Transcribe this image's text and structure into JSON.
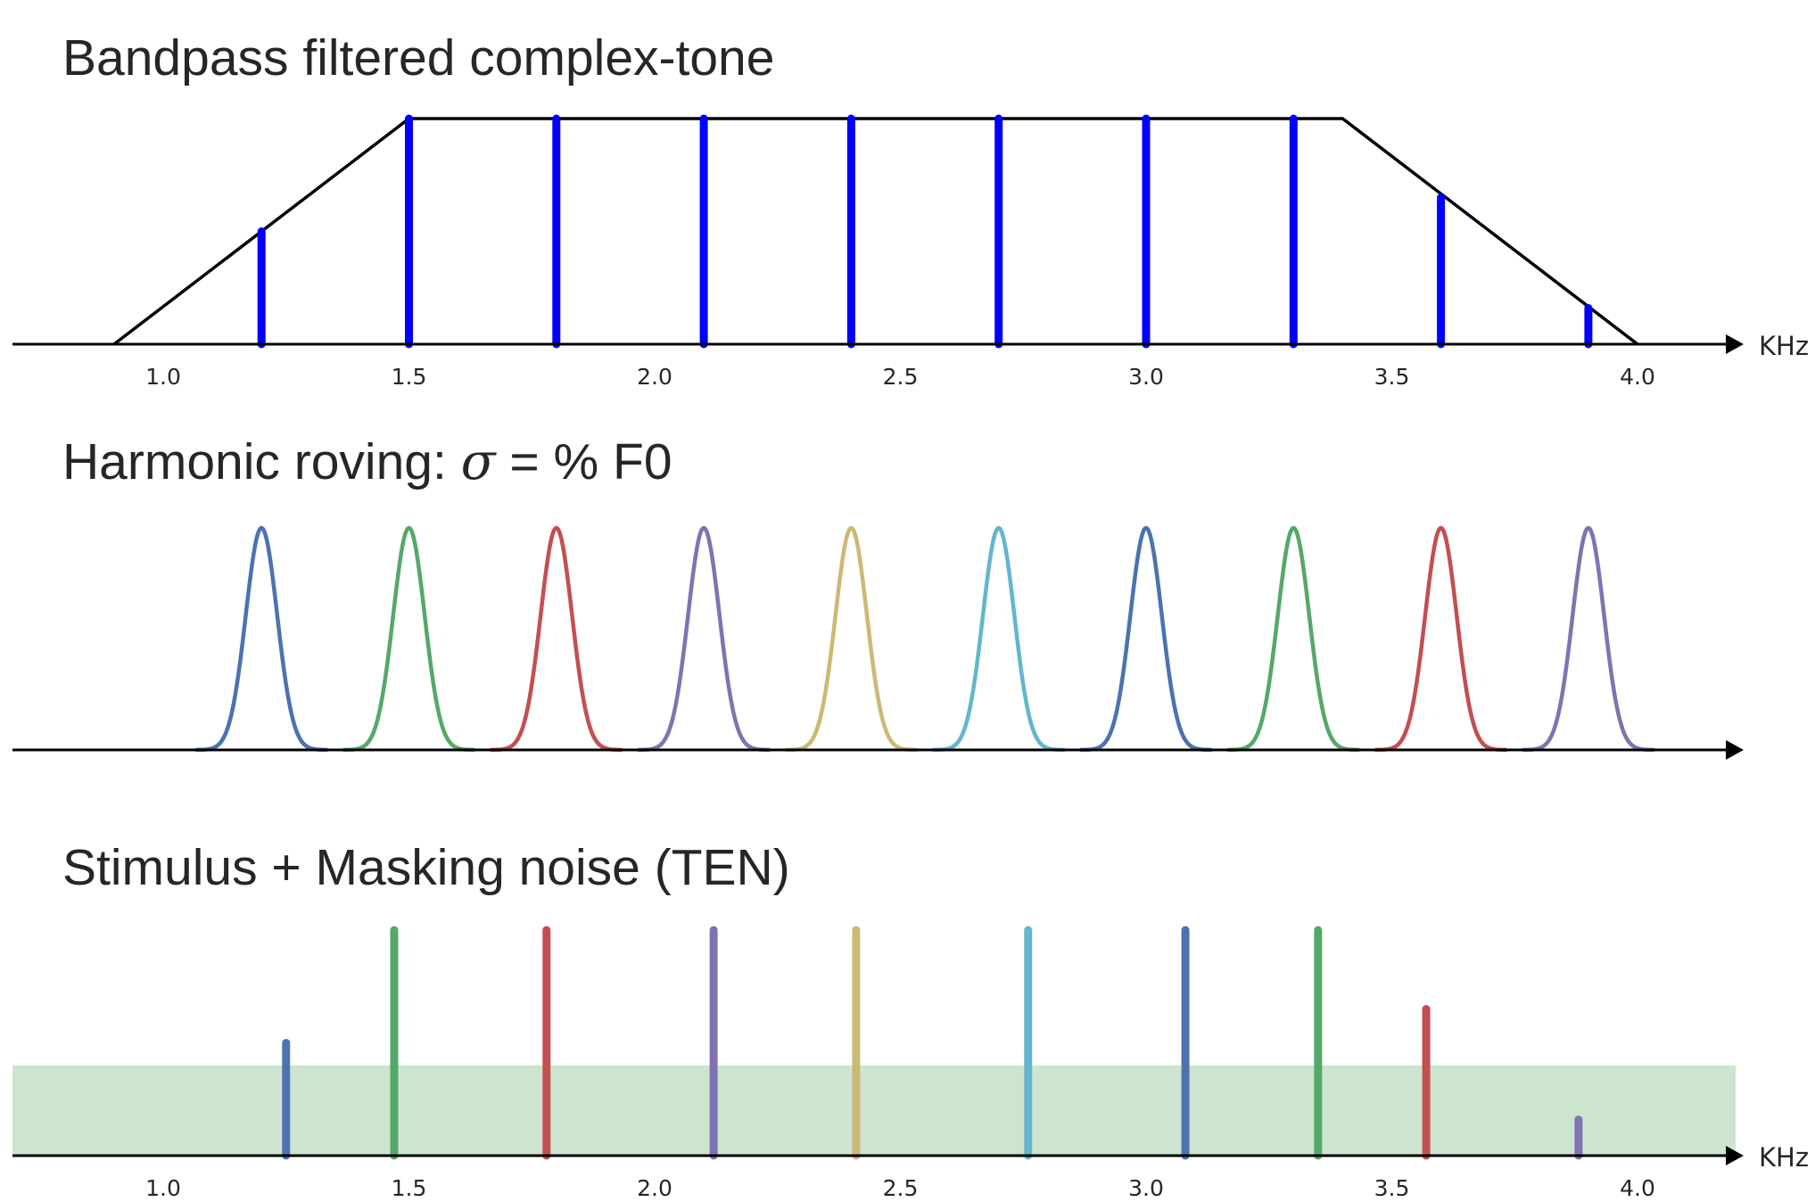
{
  "chart_data": [
    {
      "type": "bar",
      "title": "Bandpass filtered complex-tone",
      "xlabel": "KHz",
      "ylabel": "",
      "xlim": [
        0.7,
        4.2
      ],
      "ylim": [
        0,
        1.05
      ],
      "x_ticks": [
        "1.0",
        "1.5",
        "2.0",
        "2.5",
        "3.0",
        "3.5",
        "4.0"
      ],
      "filter_envelope": {
        "x": [
          0.9,
          1.5,
          3.4,
          4.0
        ],
        "y": [
          0,
          1,
          1,
          0
        ],
        "color": "#000000"
      },
      "harmonics": {
        "x": [
          1.2,
          1.5,
          1.8,
          2.1,
          2.4,
          2.7,
          3.0,
          3.3,
          3.6,
          3.9
        ],
        "y": [
          0.5,
          1,
          1,
          1,
          1,
          1,
          1,
          1,
          0.65,
          0.16
        ],
        "color": "#0000ff"
      },
      "grid": false,
      "legend": "none"
    },
    {
      "type": "line",
      "title_parts": {
        "before": "Harmonic roving: ",
        "symbol": "σ",
        "after": " = % F0"
      },
      "xlim": [
        0.7,
        4.2
      ],
      "ylim": [
        0,
        1.05
      ],
      "gaussians": {
        "centers": [
          1.2,
          1.5,
          1.8,
          2.1,
          2.4,
          2.7,
          3.0,
          3.3,
          3.6,
          3.9
        ],
        "colors": [
          "#4c72b0",
          "#55a868",
          "#c44e52",
          "#8172b2",
          "#ccb974",
          "#64b5cd",
          "#4c72b0",
          "#55a868",
          "#c44e52",
          "#8172b2"
        ],
        "sigma_khz": 0.032,
        "peak": 1
      },
      "grid": false,
      "legend": "none"
    },
    {
      "type": "bar",
      "title": "Stimulus + Masking noise (TEN)",
      "xlabel": "KHz",
      "xlim": [
        0.7,
        4.2
      ],
      "ylim": [
        0,
        1.05
      ],
      "x_ticks": [
        "1.0",
        "1.5",
        "2.0",
        "2.5",
        "3.0",
        "3.5",
        "4.0"
      ],
      "noise_level": 0.4,
      "noise_color": "#cde5cf",
      "components": {
        "x": [
          1.25,
          1.47,
          1.78,
          2.12,
          2.41,
          2.76,
          3.08,
          3.35,
          3.57,
          3.88
        ],
        "y": [
          0.5,
          1,
          1,
          1,
          1,
          1,
          1,
          1,
          0.65,
          0.16
        ],
        "colors": [
          "#4c72b0",
          "#55a868",
          "#c44e52",
          "#8172b2",
          "#ccb974",
          "#64b5cd",
          "#4c72b0",
          "#55a868",
          "#c44e52",
          "#8172b2"
        ]
      },
      "grid": false,
      "legend": "none"
    }
  ]
}
